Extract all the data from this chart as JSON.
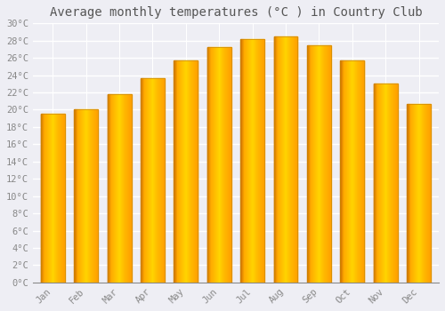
{
  "title": "Average monthly temperatures (°C ) in Country Club",
  "months": [
    "Jan",
    "Feb",
    "Mar",
    "Apr",
    "May",
    "Jun",
    "Jul",
    "Aug",
    "Sep",
    "Oct",
    "Nov",
    "Dec"
  ],
  "values": [
    19.5,
    20.0,
    21.8,
    23.7,
    25.7,
    27.2,
    28.2,
    28.5,
    27.5,
    25.7,
    23.0,
    20.7
  ],
  "bar_color_light": "#FFD060",
  "bar_color_mid": "#FFA800",
  "bar_color_dark": "#E88000",
  "background_color": "#EEEEF4",
  "grid_color": "#FFFFFF",
  "text_color": "#888888",
  "ylim": [
    0,
    30
  ],
  "ytick_step": 2,
  "title_fontsize": 10,
  "tick_fontsize": 7.5,
  "font_family": "monospace"
}
